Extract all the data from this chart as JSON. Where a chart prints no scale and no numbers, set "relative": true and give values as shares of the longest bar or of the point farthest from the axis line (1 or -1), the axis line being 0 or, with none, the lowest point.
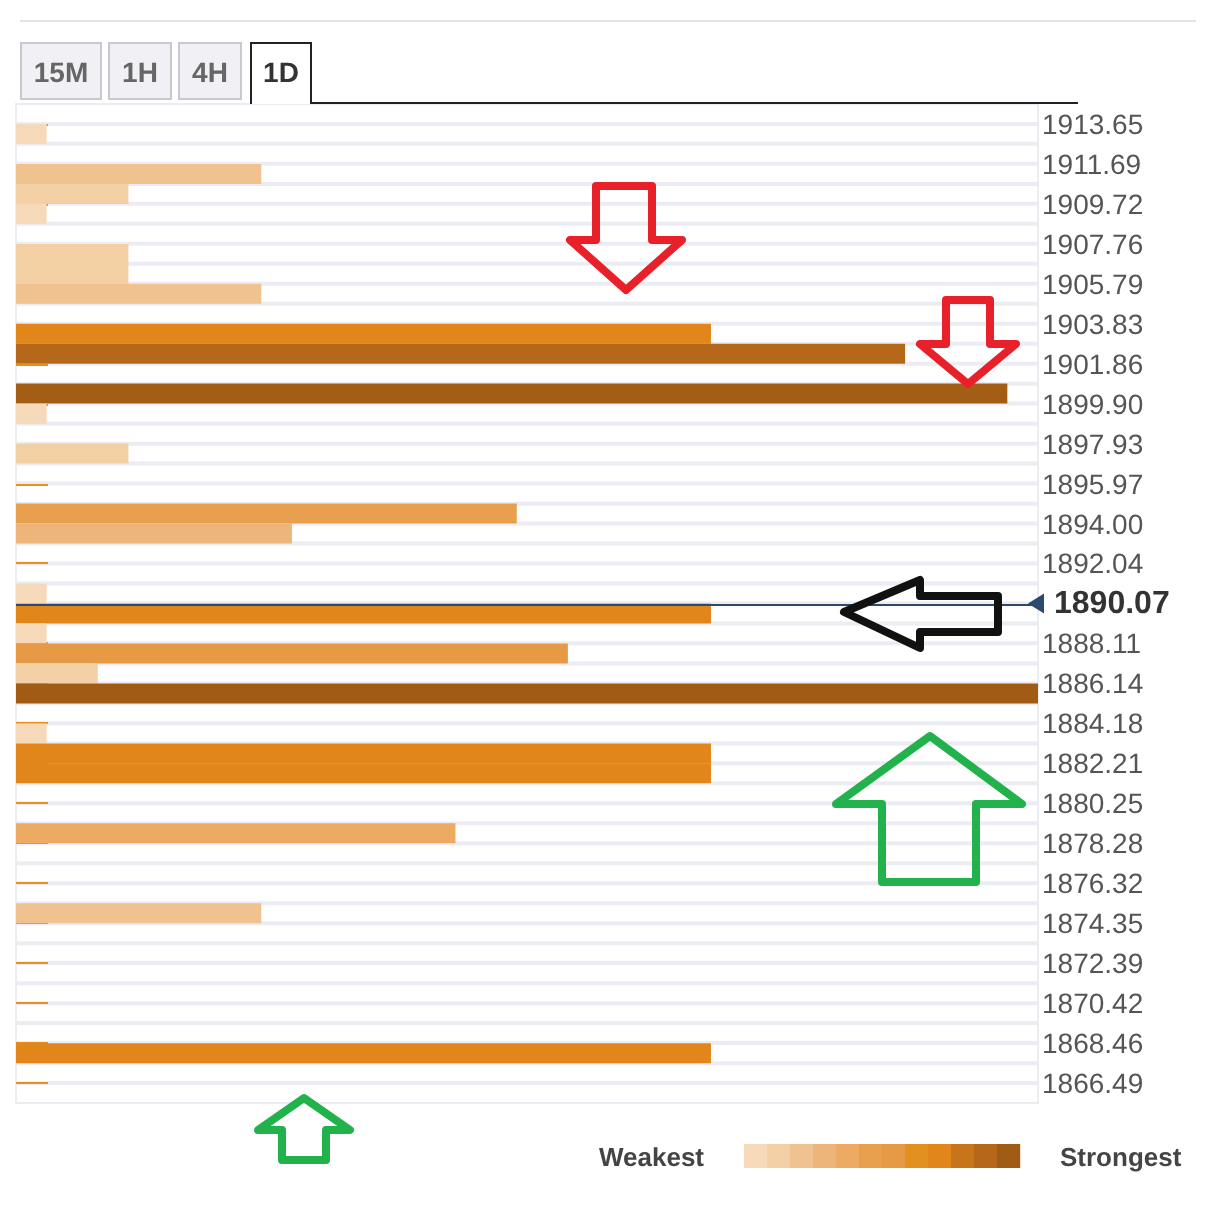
{
  "chart_data": {
    "type": "bar",
    "orientation": "horizontal",
    "relative": true,
    "x": [
      1913.16,
      1911.19,
      1910.21,
      1909.23,
      1907.26,
      1906.28,
      1905.3,
      1903.33,
      1902.35,
      1900.39,
      1899.4,
      1897.44,
      1894.49,
      1893.51,
      1890.56,
      1889.58,
      1888.6,
      1887.61,
      1886.63,
      1885.65,
      1883.68,
      1882.7,
      1881.72,
      1878.77,
      1874.84,
      1867.96
    ],
    "values": [
      0.03,
      0.24,
      0.11,
      0.03,
      0.11,
      0.11,
      0.24,
      0.68,
      0.87,
      0.97,
      0.03,
      0.11,
      0.49,
      0.27,
      0.03,
      0.68,
      0.03,
      0.54,
      0.08,
      1,
      0.03,
      0.68,
      0.68,
      0.43,
      0.24,
      0.68
    ],
    "colors": [
      "#f5d9b8",
      "#f0c28f",
      "#f3d0a4",
      "#f5d9b8",
      "#f3d0a4",
      "#f3d0a4",
      "#f0c28f",
      "#e0861a",
      "#b5681a",
      "#a35e15",
      "#f5d9b8",
      "#f3d0a4",
      "#e8a04e",
      "#eeb57b",
      "#f5d9b8",
      "#e0861a",
      "#f5d9b8",
      "#e79a45",
      "#f3cfa6",
      "#a05c14",
      "#f5d9b8",
      "#e0861a",
      "#e0861a",
      "#edaa62",
      "#f0c28f",
      "#e0861a"
    ],
    "ylim": [
      1865.51,
      1914.63
    ],
    "yticks": [
      1913.65,
      {
        "value": 1912.67,
        "label": null
      },
      1911.69,
      {
        "value": 1910.7,
        "label": null
      },
      1909.72,
      {
        "value": 1908.74,
        "label": null
      },
      1907.76,
      {
        "value": 1906.77,
        "label": null
      },
      1905.79,
      {
        "value": 1904.81,
        "label": null
      },
      1903.83,
      {
        "value": 1902.84,
        "label": null
      },
      1901.86,
      {
        "value": 1900.88,
        "label": null
      },
      {
        "value": 1899.9,
        "label": "1899.90"
      },
      {
        "value": 1898.91,
        "label": null
      },
      1897.93,
      {
        "value": 1896.95,
        "label": null
      },
      1895.97,
      {
        "value": 1894.98,
        "label": null
      },
      {
        "value": 1894,
        "label": "1894.00"
      },
      {
        "value": 1893.02,
        "label": null
      },
      1892.04,
      {
        "value": 1891.05,
        "label": null
      },
      {
        "value": 1890.07,
        "label": null
      },
      {
        "value": 1889.09,
        "label": null
      },
      1888.11,
      {
        "value": 1887.12,
        "label": null
      },
      1886.14,
      {
        "value": 1885.16,
        "label": null
      },
      1884.18,
      {
        "value": 1883.19,
        "label": null
      },
      1882.21,
      {
        "value": 1881.23,
        "label": null
      },
      1880.25,
      {
        "value": 1879.26,
        "label": null
      },
      1878.28,
      {
        "value": 1877.3,
        "label": null
      },
      1876.32,
      {
        "value": 1875.33,
        "label": null
      },
      1874.35,
      {
        "value": 1873.37,
        "label": null
      },
      1872.39,
      {
        "value": 1871.4,
        "label": null
      },
      1870.42,
      {
        "value": 1869.44,
        "label": null
      },
      1868.46,
      {
        "value": 1867.47,
        "label": null
      },
      1866.49
    ],
    "grid": "y",
    "ref_lines": [
      {
        "axis": "y",
        "value": 1890.07,
        "label": "1890.07",
        "color": "#2c4a6b"
      }
    ],
    "annotations": [
      "15M",
      "1H",
      "4H",
      "1D",
      "Weakest",
      "Strongest"
    ]
  }
}
